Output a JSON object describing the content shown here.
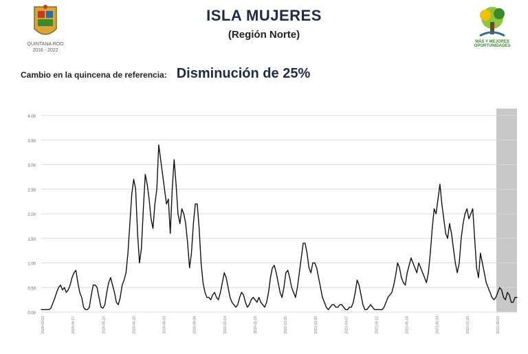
{
  "header": {
    "title": "ISLA MUJERES",
    "subtitle": "(Región Norte)",
    "logo_left_caption": "QUINTANA ROO",
    "logo_left_years": "2016 - 2022",
    "logo_right_caption": "MÁS Y MEJORES OPORTUNIDADES"
  },
  "change": {
    "label": "Cambio en la quincena de referencia:",
    "value": "Disminución de 25%"
  },
  "colors": {
    "title": "#1d2a4a",
    "line": "#111111",
    "grid": "#d9d9d9",
    "highlight": "#c8c8c8",
    "logo_green": "#3c8a2b"
  },
  "chart_data": {
    "type": "line",
    "title": "",
    "xlabel": "",
    "ylabel": "",
    "ylim": [
      0,
      4
    ],
    "y_ticks": [
      "0.00",
      "0.50",
      "1.00",
      "1.50",
      "2.00",
      "2.50",
      "3.00",
      "3.50",
      "4.00"
    ],
    "grid": true,
    "highlight_last_period": true,
    "x_tick_labels": [
      "2020-03-03",
      "2020-04-17",
      "2020-05-23",
      "2020-06-28",
      "2020-08-03",
      "2020-09-08",
      "2020-10-14",
      "2020-11-19",
      "2020-12-25",
      "2021-01-30",
      "2021-03-07",
      "2021-04-12",
      "2021-05-18",
      "2021-06-23",
      "2021-07-29",
      "2021-09-03"
    ],
    "series": [
      {
        "values": [
          0.05,
          0.05,
          0.05,
          0.05,
          0.05,
          0.08,
          0.18,
          0.28,
          0.4,
          0.5,
          0.55,
          0.45,
          0.5,
          0.4,
          0.45,
          0.55,
          0.7,
          0.8,
          0.85,
          0.6,
          0.4,
          0.3,
          0.1,
          0.05,
          0.05,
          0.1,
          0.35,
          0.55,
          0.55,
          0.5,
          0.3,
          0.1,
          0.08,
          0.15,
          0.4,
          0.6,
          0.7,
          0.55,
          0.4,
          0.2,
          0.15,
          0.3,
          0.55,
          0.65,
          0.8,
          1.2,
          1.8,
          2.4,
          2.7,
          2.5,
          1.6,
          1.0,
          1.3,
          2.1,
          2.8,
          2.6,
          2.3,
          1.9,
          1.7,
          2.2,
          2.5,
          3.4,
          3.1,
          2.8,
          2.5,
          2.2,
          2.3,
          1.6,
          2.5,
          3.1,
          2.6,
          2.0,
          1.8,
          2.1,
          2.0,
          1.8,
          1.4,
          0.9,
          1.2,
          1.8,
          2.2,
          2.2,
          1.7,
          1.0,
          0.6,
          0.4,
          0.3,
          0.3,
          0.25,
          0.35,
          0.4,
          0.3,
          0.25,
          0.4,
          0.6,
          0.8,
          0.7,
          0.5,
          0.3,
          0.2,
          0.15,
          0.1,
          0.15,
          0.3,
          0.4,
          0.35,
          0.2,
          0.1,
          0.15,
          0.25,
          0.3,
          0.25,
          0.2,
          0.3,
          0.2,
          0.15,
          0.1,
          0.2,
          0.4,
          0.7,
          0.9,
          0.95,
          0.8,
          0.6,
          0.4,
          0.3,
          0.5,
          0.8,
          0.85,
          0.7,
          0.5,
          0.4,
          0.3,
          0.5,
          0.8,
          1.1,
          1.4,
          1.4,
          1.2,
          0.9,
          0.8,
          1.0,
          1.0,
          0.9,
          0.7,
          0.5,
          0.3,
          0.2,
          0.1,
          0.05,
          0.1,
          0.15,
          0.15,
          0.1,
          0.1,
          0.15,
          0.15,
          0.1,
          0.05,
          0.05,
          0.1,
          0.1,
          0.2,
          0.4,
          0.65,
          0.55,
          0.35,
          0.15,
          0.05,
          0.05,
          0.1,
          0.15,
          0.1,
          0.05,
          0.05,
          0.05,
          0.05,
          0.05,
          0.1,
          0.2,
          0.3,
          0.35,
          0.4,
          0.55,
          0.75,
          1.0,
          0.9,
          0.7,
          0.6,
          0.55,
          0.8,
          0.95,
          1.1,
          1.0,
          0.9,
          0.8,
          1.0,
          0.9,
          0.8,
          0.7,
          0.6,
          0.8,
          1.2,
          1.7,
          2.1,
          2.0,
          2.3,
          2.6,
          2.2,
          1.9,
          1.6,
          1.5,
          1.8,
          1.6,
          1.3,
          1.0,
          0.8,
          1.0,
          1.5,
          1.8,
          2.0,
          2.1,
          1.9,
          2.0,
          2.1,
          1.5,
          0.9,
          0.7,
          1.2,
          1.0,
          0.8,
          0.6,
          0.5,
          0.4,
          0.3,
          0.25,
          0.3,
          0.4,
          0.5,
          0.45,
          0.3,
          0.25,
          0.4,
          0.35,
          0.2,
          0.2,
          0.3,
          0.3
        ]
      }
    ]
  }
}
